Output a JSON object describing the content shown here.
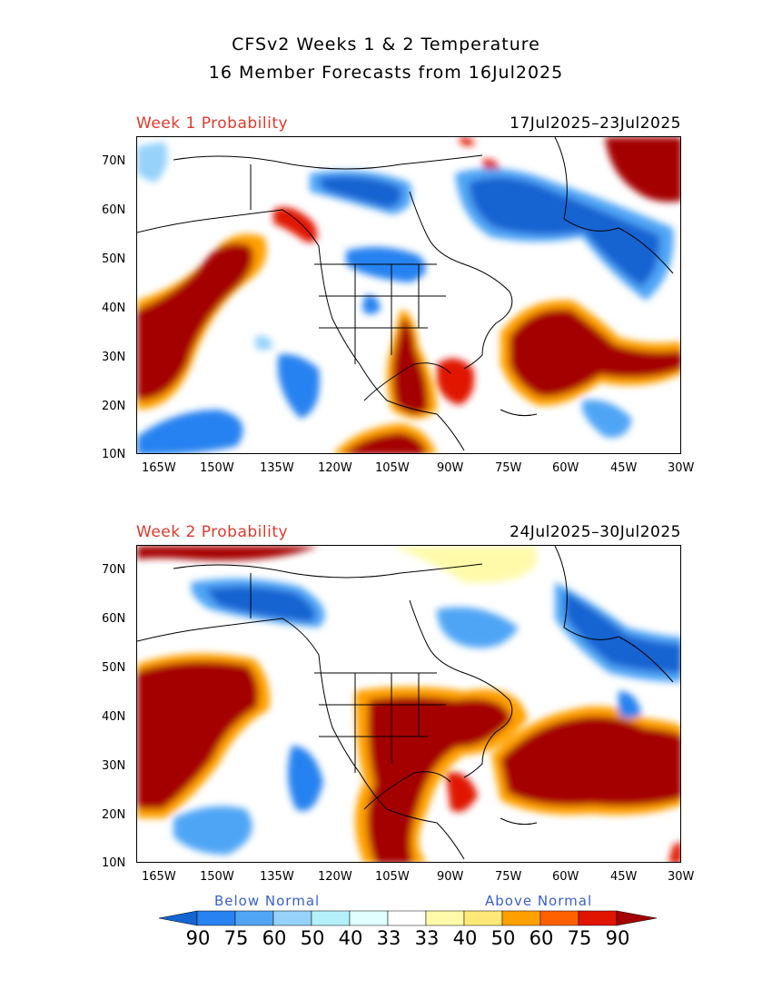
{
  "header": {
    "title_line1": "CFSv2 Weeks 1 & 2 Temperature",
    "title_line2": "16 Member Forecasts from 16Jul2025"
  },
  "panels": [
    {
      "label": "Week 1 Probability",
      "dates": "17Jul2025–23Jul2025"
    },
    {
      "label": "Week 2 Probability",
      "dates": "24Jul2025–30Jul2025"
    }
  ],
  "axes": {
    "lat_labels": [
      "70N",
      "60N",
      "50N",
      "40N",
      "30N",
      "20N",
      "10N"
    ],
    "lon_labels": [
      "165W",
      "150W",
      "135W",
      "120W",
      "105W",
      "90W",
      "75W",
      "60W",
      "45W",
      "30W"
    ]
  },
  "legend": {
    "below_label": "Below Normal",
    "above_label": "Above Normal",
    "values": [
      "90",
      "75",
      "60",
      "50",
      "40",
      "33",
      "33",
      "40",
      "50",
      "60",
      "75",
      "90"
    ],
    "colors_below": [
      "#1464d2",
      "#2882f0",
      "#50a5f5",
      "#96d2fa",
      "#b4f0fa",
      "#e1ffff"
    ],
    "colors_above": [
      "#fffaaa",
      "#ffe878",
      "#ffc03c",
      "#ffa000",
      "#ff6000",
      "#e11400",
      "#a50000"
    ]
  }
}
